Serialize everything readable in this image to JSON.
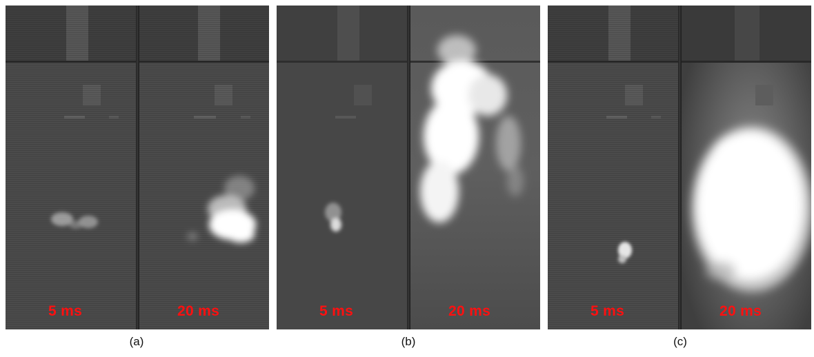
{
  "panels": [
    {
      "caption": "(a)",
      "frames": [
        {
          "time": "5 ms",
          "flame": "small"
        },
        {
          "time": "20 ms",
          "flame": "medium"
        }
      ]
    },
    {
      "caption": "(b)",
      "frames": [
        {
          "time": "5 ms",
          "flame": "small"
        },
        {
          "time": "20 ms",
          "flame": "tall-plume"
        }
      ]
    },
    {
      "caption": "(c)",
      "frames": [
        {
          "time": "5 ms",
          "flame": "small"
        },
        {
          "time": "20 ms",
          "flame": "large-bright"
        }
      ]
    }
  ],
  "colors": {
    "time_label": "#ff1010",
    "frame_background": "#4a4a4a",
    "flame": "#ffffff"
  }
}
